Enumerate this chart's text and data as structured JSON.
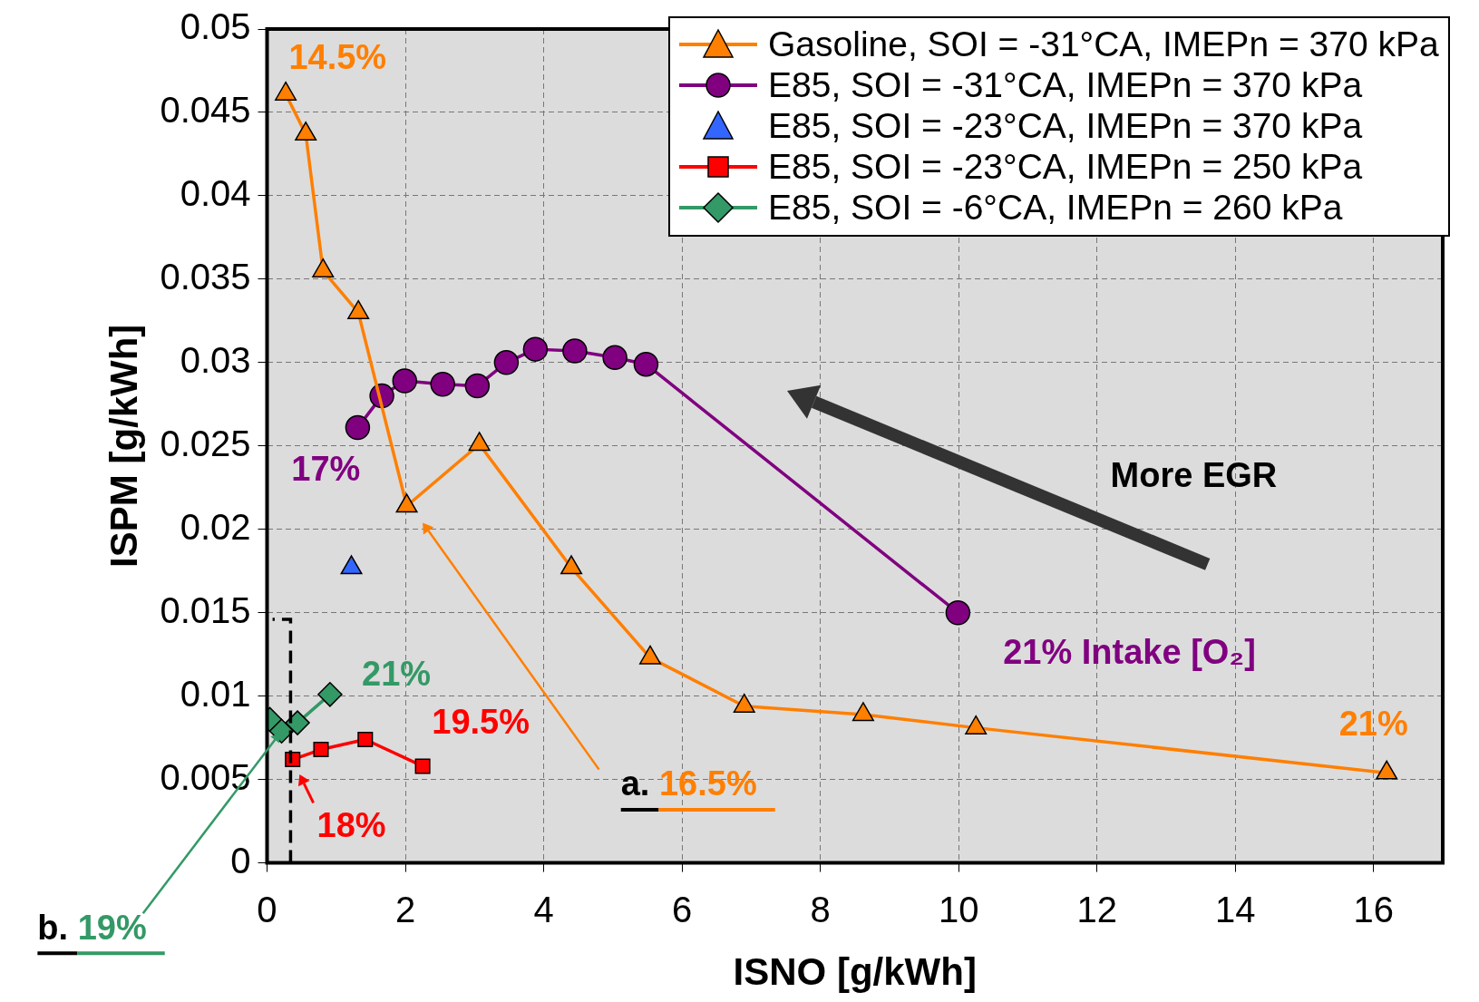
{
  "chart_data": {
    "type": "line",
    "xlabel": "ISNO [g/kWh]",
    "ylabel": "ISPM [g/kWh]",
    "xlim": [
      0,
      17
    ],
    "xticks": [
      0,
      2,
      4,
      6,
      8,
      10,
      12,
      14,
      16
    ],
    "ylim": [
      0,
      0.05
    ],
    "yticks": [
      0,
      0.005,
      0.01,
      0.015,
      0.02,
      0.025,
      0.03,
      0.035,
      0.04,
      0.045,
      0.05
    ],
    "grid": true,
    "legend": "top right",
    "series": [
      {
        "name": "Gasoline, SOI = -31°CA, IMEPn = 370 kPa",
        "type": "line",
        "marker": "triangle",
        "color": "#ff7f00",
        "x": [
          0.27,
          0.56,
          0.81,
          1.32,
          2.02,
          3.07,
          4.4,
          5.54,
          6.9,
          8.62,
          10.25,
          16.19
        ],
        "values": [
          0.0461,
          0.0437,
          0.0355,
          0.033,
          0.0214,
          0.0251,
          0.0177,
          0.0123,
          0.0094,
          0.0089,
          0.0081,
          0.0054
        ]
      },
      {
        "name": "E85, SOI = -31°CA, IMEPn = 370 kPa",
        "type": "line",
        "marker": "circle",
        "color": "#800080",
        "x": [
          1.31,
          1.66,
          1.99,
          2.54,
          3.04,
          3.46,
          3.88,
          4.45,
          5.03,
          5.48,
          9.99
        ],
        "values": [
          0.0261,
          0.028,
          0.0289,
          0.0287,
          0.0286,
          0.03,
          0.0308,
          0.0307,
          0.0303,
          0.0299,
          0.015
        ]
      },
      {
        "name": "E85, SOI = -23°CA, IMEPn = 370 kPa",
        "type": "scatter",
        "marker": "triangle",
        "color": "#3366ff",
        "x": [
          1.22
        ],
        "values": [
          0.0177
        ]
      },
      {
        "name": "E85, SOI = -23°CA, IMEPn = 250 kPa",
        "type": "line",
        "marker": "square",
        "color": "#ff0000",
        "x": [
          0.37,
          0.78,
          1.42,
          2.25
        ],
        "values": [
          0.0062,
          0.0068,
          0.0074,
          0.0058
        ]
      },
      {
        "name": "E85, SOI = -6°CA, IMEPn = 260 kPa",
        "type": "line",
        "marker": "diamond",
        "color": "#339966",
        "x": [
          0.04,
          0.21,
          0.44,
          0.91
        ],
        "values": [
          0.0086,
          0.0079,
          0.0084,
          0.0101
        ]
      }
    ],
    "annotations": [
      "14.5%",
      "17%",
      "21% Intake [O₂]",
      "21%",
      "21%",
      "19.5%",
      "18%",
      "a. 16.5%",
      "More EGR",
      {
        "text": "b. 19%",
        "x": 0.19,
        "y": 0.0078
      }
    ]
  }
}
